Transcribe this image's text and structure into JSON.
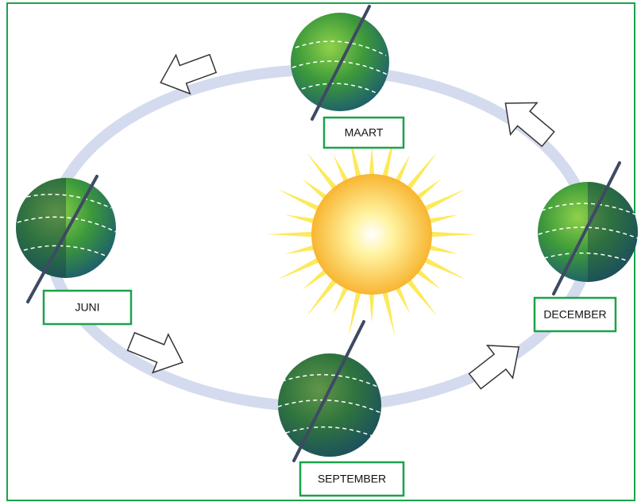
{
  "nodes": [
    {
      "label": "MAART"
    },
    {
      "label": "JUNI"
    },
    {
      "label": "DECEMBER"
    },
    {
      "label": "SEPTEMBER"
    }
  ]
}
